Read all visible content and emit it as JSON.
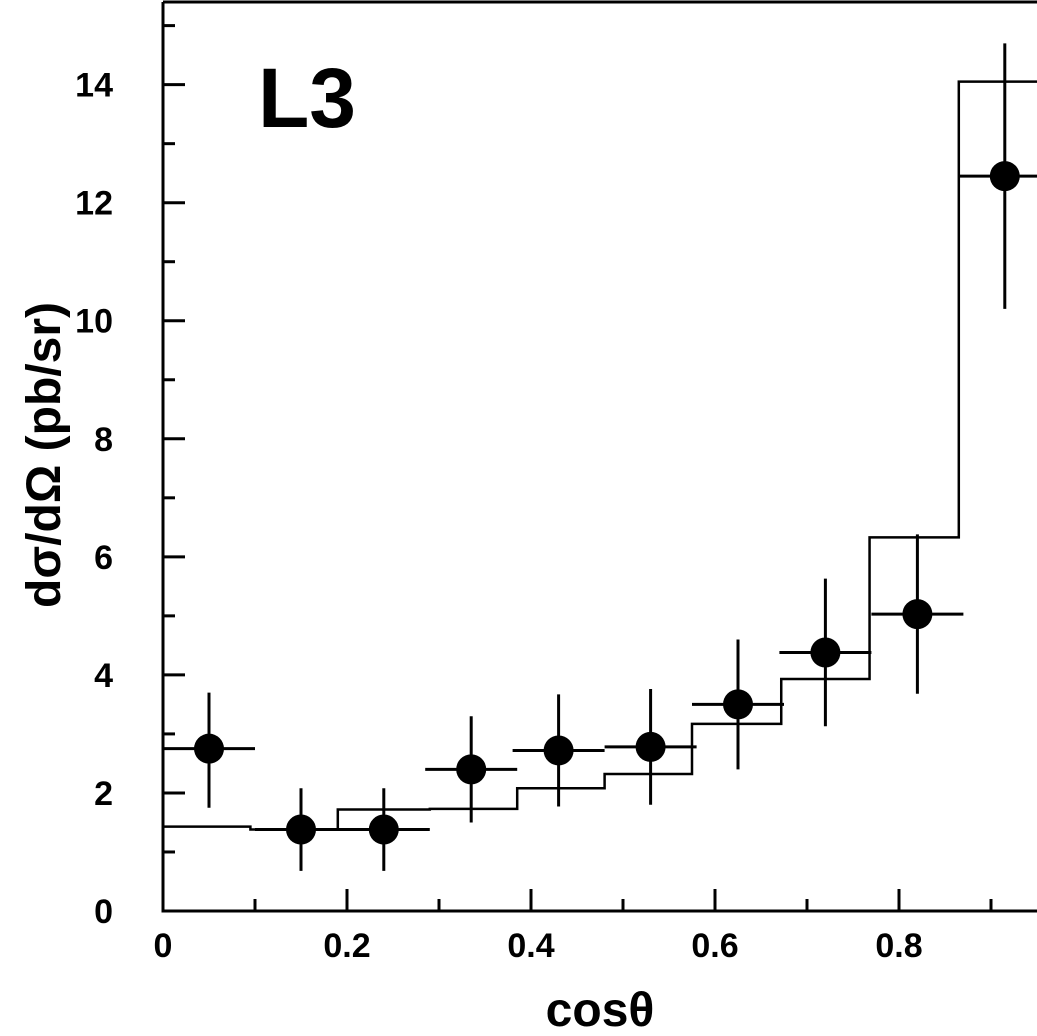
{
  "chart_data": {
    "type": "scatter",
    "experiment_label": "L3",
    "xlabel": "cosθ",
    "ylabel": "dσ/dΩ (pb/sr)",
    "xlim": [
      0,
      0.95
    ],
    "ylim": [
      0,
      15.4
    ],
    "x_ticks": [
      0,
      0.2,
      0.4,
      0.6,
      0.8
    ],
    "x_tick_labels": [
      "0",
      "0.2",
      "0.4",
      "0.6",
      "0.8"
    ],
    "y_ticks": [
      0,
      2,
      4,
      6,
      8,
      10,
      12,
      14
    ],
    "y_tick_labels": [
      "0",
      "2",
      "4",
      "6",
      "8",
      "10",
      "12",
      "14"
    ],
    "grid": false,
    "series": [
      {
        "kind": "data-points-with-errors",
        "points": [
          {
            "x": 0.05,
            "xerr": 0.05,
            "y": 2.75,
            "yerr_lo": 1.0,
            "yerr_hi": 0.95
          },
          {
            "x": 0.15,
            "xerr": 0.05,
            "y": 1.38,
            "yerr_lo": 0.7,
            "yerr_hi": 0.7
          },
          {
            "x": 0.24,
            "xerr": 0.05,
            "y": 1.38,
            "yerr_lo": 0.7,
            "yerr_hi": 0.7
          },
          {
            "x": 0.335,
            "xerr": 0.05,
            "y": 2.4,
            "yerr_lo": 0.9,
            "yerr_hi": 0.9
          },
          {
            "x": 0.43,
            "xerr": 0.05,
            "y": 2.72,
            "yerr_lo": 0.95,
            "yerr_hi": 0.95
          },
          {
            "x": 0.53,
            "xerr": 0.05,
            "y": 2.78,
            "yerr_lo": 0.98,
            "yerr_hi": 0.98
          },
          {
            "x": 0.625,
            "xerr": 0.05,
            "y": 3.5,
            "yerr_lo": 1.1,
            "yerr_hi": 1.1
          },
          {
            "x": 0.72,
            "xerr": 0.05,
            "y": 4.38,
            "yerr_lo": 1.25,
            "yerr_hi": 1.25
          },
          {
            "x": 0.82,
            "xerr": 0.05,
            "y": 5.03,
            "yerr_lo": 1.35,
            "yerr_hi": 1.35
          },
          {
            "x": 0.915,
            "xerr": 0.05,
            "y": 12.45,
            "yerr_lo": 2.25,
            "yerr_hi": 2.25
          }
        ]
      },
      {
        "kind": "histogram-prediction",
        "bin_edges": [
          0,
          0.095,
          0.19,
          0.29,
          0.385,
          0.48,
          0.575,
          0.672,
          0.768,
          0.865,
          0.95
        ],
        "values": [
          1.43,
          1.38,
          1.72,
          1.73,
          2.08,
          2.32,
          3.17,
          3.93,
          6.33,
          14.05
        ]
      }
    ]
  }
}
